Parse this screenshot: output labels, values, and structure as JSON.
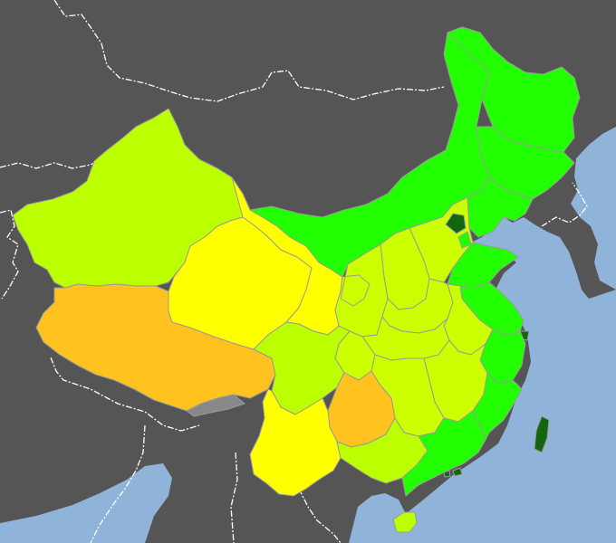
{
  "map": {
    "colors": {
      "ocean": "#8fb3d9",
      "foreign_land": "#555555",
      "border_line": "#ffffff",
      "province_outline": "#9a9a9a",
      "dark_green": "#126612",
      "green": "#22ff00",
      "lime": "#bbff00",
      "yellow_green": "#ccff00",
      "yellow": "#ffff00",
      "orange": "#ffc21e",
      "grey": "#888888"
    },
    "regions": [
      {
        "name": "xinjiang",
        "category": "lime"
      },
      {
        "name": "tibet",
        "category": "orange"
      },
      {
        "name": "qinghai",
        "category": "yellow"
      },
      {
        "name": "gansu",
        "category": "yellow"
      },
      {
        "name": "inner-mongolia",
        "category": "green"
      },
      {
        "name": "heilongjiang",
        "category": "green"
      },
      {
        "name": "jilin",
        "category": "green"
      },
      {
        "name": "liaoning",
        "category": "green"
      },
      {
        "name": "beijing",
        "category": "dark_green"
      },
      {
        "name": "tianjin",
        "category": "green"
      },
      {
        "name": "hebei",
        "category": "yellow_green"
      },
      {
        "name": "shanxi",
        "category": "yellow_green"
      },
      {
        "name": "ningxia",
        "category": "yellow"
      },
      {
        "name": "shaanxi",
        "category": "yellow_green"
      },
      {
        "name": "shandong",
        "category": "green"
      },
      {
        "name": "henan",
        "category": "yellow_green"
      },
      {
        "name": "jiangsu",
        "category": "green"
      },
      {
        "name": "shanghai",
        "category": "dark_green"
      },
      {
        "name": "anhui",
        "category": "yellow_green"
      },
      {
        "name": "hubei",
        "category": "yellow_green"
      },
      {
        "name": "sichuan",
        "category": "lime"
      },
      {
        "name": "chongqing",
        "category": "yellow_green"
      },
      {
        "name": "zhejiang",
        "category": "green"
      },
      {
        "name": "jiangxi",
        "category": "yellow_green"
      },
      {
        "name": "hunan",
        "category": "yellow_green"
      },
      {
        "name": "guizhou",
        "category": "orange"
      },
      {
        "name": "yunnan",
        "category": "yellow"
      },
      {
        "name": "guangxi",
        "category": "lime"
      },
      {
        "name": "guangdong",
        "category": "green"
      },
      {
        "name": "fujian",
        "category": "green"
      },
      {
        "name": "hainan",
        "category": "lime"
      },
      {
        "name": "taiwan",
        "category": "dark_green"
      },
      {
        "name": "hong-kong",
        "category": "dark_green"
      },
      {
        "name": "macau",
        "category": "dark_green"
      },
      {
        "name": "disputed-area",
        "category": "grey"
      }
    ]
  }
}
